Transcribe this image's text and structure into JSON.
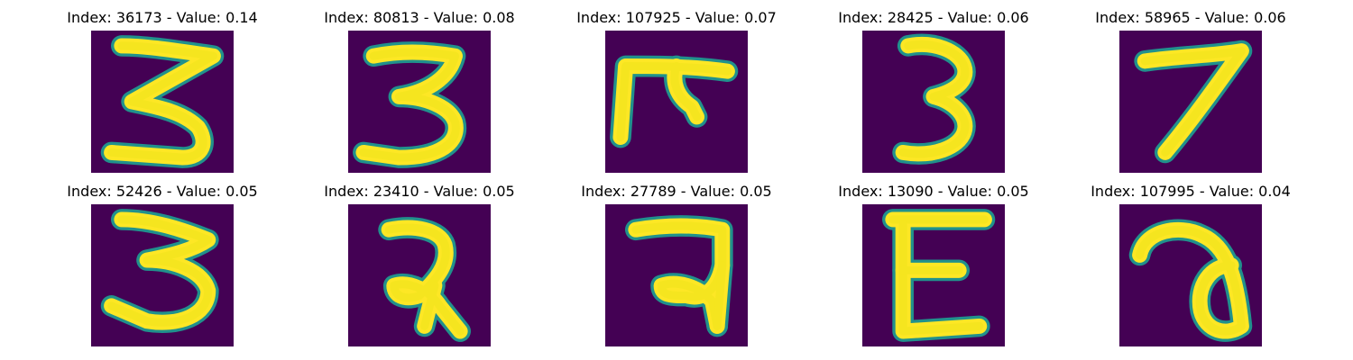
{
  "colors": {
    "background": "#440154",
    "halo": "#21918c",
    "stroke": "#fde725",
    "core": "#f5e51f"
  },
  "panels": [
    {
      "title": "Index: 36173 - Value: 0.14",
      "glyph": "three-z"
    },
    {
      "title": "Index: 80813 - Value: 0.08",
      "glyph": "three-open"
    },
    {
      "title": "Index: 107925 - Value: 0.07",
      "glyph": "pi-shape"
    },
    {
      "title": "Index: 28425 - Value: 0.06",
      "glyph": "three-narrow"
    },
    {
      "title": "Index: 58965 - Value: 0.06",
      "glyph": "seven"
    },
    {
      "title": "Index: 52426 - Value: 0.05",
      "glyph": "three-wide"
    },
    {
      "title": "Index: 23410 - Value: 0.05",
      "glyph": "devanagari-ra-a"
    },
    {
      "title": "Index: 27789 - Value: 0.05",
      "glyph": "devanagari-ra-b"
    },
    {
      "title": "Index: 13090 - Value: 0.05",
      "glyph": "e-shape"
    },
    {
      "title": "Index: 107995 - Value: 0.04",
      "glyph": "loop-a"
    }
  ]
}
